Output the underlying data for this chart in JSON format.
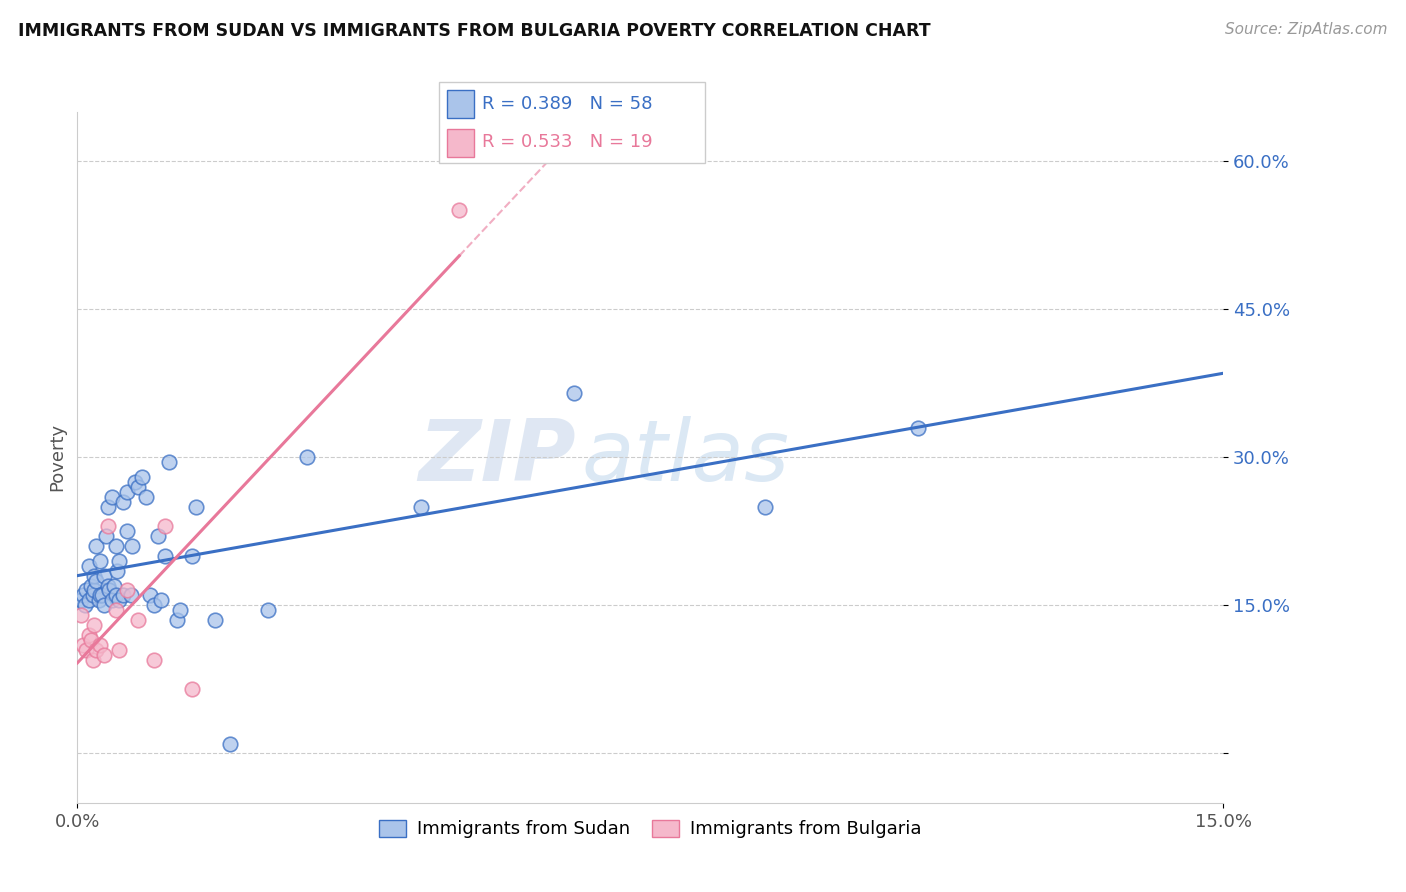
{
  "title": "IMMIGRANTS FROM SUDAN VS IMMIGRANTS FROM BULGARIA POVERTY CORRELATION CHART",
  "source": "Source: ZipAtlas.com",
  "ylabel": "Poverty",
  "xlim": [
    0.0,
    15.0
  ],
  "ylim": [
    -5.0,
    65.0
  ],
  "yticks": [
    0.0,
    15.0,
    30.0,
    45.0,
    60.0
  ],
  "ytick_labels": [
    "",
    "15.0%",
    "30.0%",
    "45.0%",
    "60.0%"
  ],
  "xtick_vals": [
    0.0,
    15.0
  ],
  "xtick_labels": [
    "0.0%",
    "15.0%"
  ],
  "legend_sudan": "Immigrants from Sudan",
  "legend_bulgaria": "Immigrants from Bulgaria",
  "R_sudan": 0.389,
  "N_sudan": 58,
  "R_bulgaria": 0.533,
  "N_bulgaria": 19,
  "color_sudan_fill": "#aac4ea",
  "color_bulgaria_fill": "#f5b8cb",
  "color_sudan_line": "#3a6fc4",
  "color_bulgaria_line": "#e8789a",
  "watermark_zip": "ZIP",
  "watermark_atlas": "atlas",
  "sudan_x": [
    0.05,
    0.08,
    0.1,
    0.12,
    0.15,
    0.15,
    0.18,
    0.2,
    0.22,
    0.22,
    0.25,
    0.25,
    0.28,
    0.3,
    0.3,
    0.32,
    0.35,
    0.35,
    0.38,
    0.4,
    0.4,
    0.42,
    0.45,
    0.45,
    0.48,
    0.5,
    0.5,
    0.52,
    0.55,
    0.55,
    0.6,
    0.6,
    0.65,
    0.65,
    0.7,
    0.72,
    0.75,
    0.8,
    0.85,
    0.9,
    0.95,
    1.0,
    1.05,
    1.1,
    1.15,
    1.2,
    1.3,
    1.35,
    1.5,
    1.55,
    1.8,
    2.0,
    2.5,
    3.0,
    4.5,
    6.5,
    9.0,
    11.0
  ],
  "sudan_y": [
    15.5,
    16.0,
    15.0,
    16.5,
    15.5,
    19.0,
    17.0,
    16.0,
    16.5,
    18.0,
    17.5,
    21.0,
    15.5,
    16.0,
    19.5,
    16.0,
    18.0,
    15.0,
    22.0,
    17.0,
    25.0,
    16.5,
    15.5,
    26.0,
    17.0,
    16.0,
    21.0,
    18.5,
    15.5,
    19.5,
    16.0,
    25.5,
    26.5,
    22.5,
    16.0,
    21.0,
    27.5,
    27.0,
    28.0,
    26.0,
    16.0,
    15.0,
    22.0,
    15.5,
    20.0,
    29.5,
    13.5,
    14.5,
    20.0,
    25.0,
    13.5,
    1.0,
    14.5,
    30.0,
    25.0,
    36.5,
    25.0,
    33.0
  ],
  "bulgaria_x": [
    0.05,
    0.08,
    0.12,
    0.15,
    0.18,
    0.2,
    0.22,
    0.25,
    0.3,
    0.35,
    0.4,
    0.5,
    0.55,
    0.65,
    0.8,
    1.0,
    1.15,
    1.5,
    5.0
  ],
  "bulgaria_y": [
    14.0,
    11.0,
    10.5,
    12.0,
    11.5,
    9.5,
    13.0,
    10.5,
    11.0,
    10.0,
    23.0,
    14.5,
    10.5,
    16.5,
    13.5,
    9.5,
    23.0,
    6.5,
    55.0
  ]
}
